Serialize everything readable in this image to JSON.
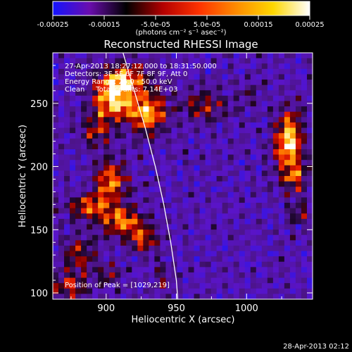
{
  "chart_data": {
    "type": "heatmap",
    "title": "Reconstructed RHESSI Image",
    "xlabel": "Heliocentric X (arcsec)",
    "ylabel": "Heliocentric Y (arcsec)",
    "xlim": [
      862,
      1047
    ],
    "ylim": [
      95,
      290
    ],
    "x_ticks": [
      900,
      950,
      1000
    ],
    "x_tick_labels": [
      "900",
      "950",
      "1000"
    ],
    "y_ticks": [
      100,
      150,
      200,
      250
    ],
    "y_tick_labels": [
      "100",
      "150",
      "200",
      "250"
    ],
    "colorbar": {
      "min": -0.00025,
      "max": 0.00025,
      "colors": [
        "#1414ff",
        "#6a0dad",
        "#000000",
        "#b40000",
        "#ff3300",
        "#ff8c00",
        "#ffd700",
        "#ffffff"
      ],
      "tick_values": [
        -0.00025,
        -0.00015,
        -5e-05,
        5e-05,
        0.00015,
        0.00025
      ],
      "tick_labels": [
        "-0.00025",
        "-0.00015",
        "-5.0e-05",
        "5.0e-05",
        "0.00015",
        "0.00025"
      ],
      "unit_label": "(photons cm⁻² s⁻¹ asec⁻²)"
    },
    "annotations": [
      "27-Apr-2013 18:27:12.000 to 18:31:50.000",
      "Detectors: 3F 5F 6F 7F 8F 9F, Att 0",
      "Energy Range: 25.0 - 50.0 keV",
      "Clean     Total counts: 7.14E+03"
    ],
    "peak_label": "Position of Peak = [1029,219]",
    "peak_position": [
      1029,
      219
    ],
    "limb_curve": [
      [
        912,
        290
      ],
      [
        920,
        260
      ],
      [
        928,
        230
      ],
      [
        935,
        200
      ],
      [
        941,
        170
      ],
      [
        946,
        140
      ],
      [
        950,
        110
      ],
      [
        951,
        95
      ]
    ],
    "grid": false,
    "bright_regions": [
      {
        "x": 905,
        "y": 253,
        "sx": 10,
        "sy": 12,
        "amp": 1.0
      },
      {
        "x": 930,
        "y": 242,
        "sx": 9,
        "sy": 11,
        "amp": 0.9
      },
      {
        "x": 915,
        "y": 270,
        "sx": 12,
        "sy": 8,
        "amp": 0.7
      },
      {
        "x": 893,
        "y": 228,
        "sx": 7,
        "sy": 8,
        "amp": 0.55
      },
      {
        "x": 903,
        "y": 188,
        "sx": 8,
        "sy": 12,
        "amp": 0.8
      },
      {
        "x": 888,
        "y": 168,
        "sx": 10,
        "sy": 7,
        "amp": 0.65
      },
      {
        "x": 912,
        "y": 156,
        "sx": 11,
        "sy": 8,
        "amp": 0.75
      },
      {
        "x": 926,
        "y": 142,
        "sx": 7,
        "sy": 7,
        "amp": 0.6
      },
      {
        "x": 880,
        "y": 130,
        "sx": 8,
        "sy": 10,
        "amp": 0.5
      },
      {
        "x": 873,
        "y": 105,
        "sx": 10,
        "sy": 7,
        "amp": 0.55
      },
      {
        "x": 902,
        "y": 115,
        "sx": 6,
        "sy": 6,
        "amp": 0.35
      },
      {
        "x": 970,
        "y": 248,
        "sx": 12,
        "sy": 9,
        "amp": 0.45
      },
      {
        "x": 1030,
        "y": 219,
        "sx": 7,
        "sy": 16,
        "amp": 1.05
      },
      {
        "x": 1035,
        "y": 190,
        "sx": 6,
        "sy": 8,
        "amp": 0.55
      },
      {
        "x": 1037,
        "y": 163,
        "sx": 5,
        "sy": 6,
        "amp": 0.45
      },
      {
        "x": 1002,
        "y": 258,
        "sx": 5,
        "sy": 5,
        "amp": 0.3
      },
      {
        "x": 940,
        "y": 112,
        "sx": 5,
        "sy": 8,
        "amp": 0.3
      }
    ]
  },
  "footer": {
    "timestamp": "28-Apr-2013 02:12"
  }
}
